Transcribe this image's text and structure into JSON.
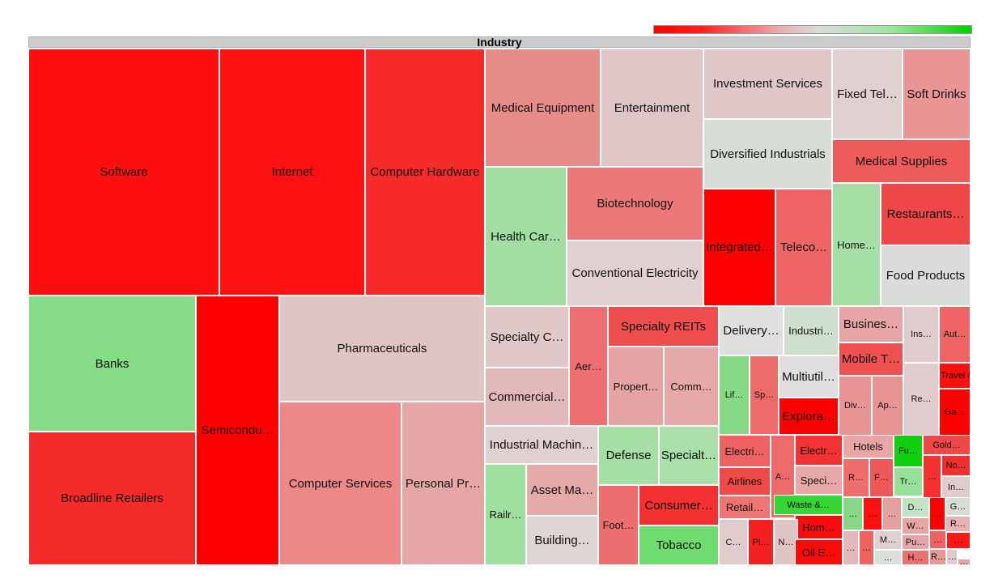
{
  "chart_data": {
    "type": "treemap",
    "title": "Industry",
    "color_scale": {
      "low": "#ff0000",
      "mid": "#d9dcd9",
      "high": "#00d000"
    },
    "cells": [
      {
        "label": "Software",
        "color": "#fd0f10"
      },
      {
        "label": "Internet",
        "color": "#fc1012"
      },
      {
        "label": "Computer Hardware",
        "color": "#f72a2a"
      },
      {
        "label": "Banks",
        "color": "#86dc86"
      },
      {
        "label": "Broadline Retailers",
        "color": "#f52a2a"
      },
      {
        "label": "Semicondu…",
        "color": "#ff0000"
      },
      {
        "label": "Pharmaceuticals",
        "color": "#e0c5c5"
      },
      {
        "label": "Computer Services",
        "color": "#ec8887"
      },
      {
        "label": "Personal Pr…",
        "color": "#e6a6a6"
      },
      {
        "label": "Medical Equipment",
        "color": "#e88c8a"
      },
      {
        "label": "Entertainment",
        "color": "#e0c6c6"
      },
      {
        "label": "Investment Services",
        "color": "#e0c8c8"
      },
      {
        "label": "Fixed Tel…",
        "color": "#e0d0d0"
      },
      {
        "label": "Soft Drinks",
        "color": "#e99595"
      },
      {
        "label": "Diversified Industrials",
        "color": "#d8ddd8"
      },
      {
        "label": "Medical Supplies",
        "color": "#ee5b5b"
      },
      {
        "label": "Health Car…",
        "color": "#a2dea2"
      },
      {
        "label": "Biotechnology",
        "color": "#eb7979"
      },
      {
        "label": "Conventional Electricity",
        "color": "#e0d0d0"
      },
      {
        "label": "Integrated…",
        "color": "#ff0000"
      },
      {
        "label": "Teleco…",
        "color": "#ef6464"
      },
      {
        "label": "Home…",
        "color": "#a5dfa5"
      },
      {
        "label": "Restaurants…",
        "color": "#f04848"
      },
      {
        "label": "Food Products",
        "color": "#d9dcd9"
      },
      {
        "label": "Specialty C…",
        "color": "#e0c8c8"
      },
      {
        "label": "Commercial…",
        "color": "#e2b9b9"
      },
      {
        "label": "Aer…",
        "color": "#ed6f6f"
      },
      {
        "label": "Specialty REITs",
        "color": "#f04e4e"
      },
      {
        "label": "Propert…",
        "color": "#e6a3a3"
      },
      {
        "label": "Comm…",
        "color": "#e6a8a8"
      },
      {
        "label": "Industrial Machin…",
        "color": "#e0d0d0"
      },
      {
        "label": "Railr…",
        "color": "#9ee09e"
      },
      {
        "label": "Asset Ma…",
        "color": "#e6a9a9"
      },
      {
        "label": "Building…",
        "color": "#e0d4d4"
      },
      {
        "label": "Defense",
        "color": "#a6dfa6"
      },
      {
        "label": "Specialt…",
        "color": "#a9dfa9"
      },
      {
        "label": "Foot…",
        "color": "#ed6e6e"
      },
      {
        "label": "Consumer…",
        "color": "#f33131"
      },
      {
        "label": "Tobacco",
        "color": "#6fdc6f"
      },
      {
        "label": "Delivery…",
        "color": "#e0dede"
      },
      {
        "label": "Industri…",
        "color": "#cfdfcf"
      },
      {
        "label": "Busines…",
        "color": "#e8a5a5"
      },
      {
        "label": "Ins…",
        "color": "#e0cccc"
      },
      {
        "label": "Aut…",
        "color": "#ef6565"
      },
      {
        "label": "Mobile T…",
        "color": "#f25050"
      },
      {
        "label": "Lif…",
        "color": "#86da86"
      },
      {
        "label": "Sp…",
        "color": "#ee6b6b"
      },
      {
        "label": "Multiutil…",
        "color": "#e0dede"
      },
      {
        "label": "Explora…",
        "color": "#ff0000"
      },
      {
        "label": "Div…",
        "color": "#e89494"
      },
      {
        "label": "Ap…",
        "color": "#e99494"
      },
      {
        "label": "Re…",
        "color": "#e0cccc"
      },
      {
        "label": "Travel &…",
        "color": "#fb0f0f"
      },
      {
        "label": "Ga…",
        "color": "#ff0000"
      },
      {
        "label": "Electri…",
        "color": "#ef6262"
      },
      {
        "label": "A…",
        "color": "#ef6a6a"
      },
      {
        "label": "Electr…",
        "color": "#f33333"
      },
      {
        "label": "Hotels",
        "color": "#e8a6a6"
      },
      {
        "label": "Fu…",
        "color": "#10d010"
      },
      {
        "label": "Gold…",
        "color": "#f04848"
      },
      {
        "label": "Airlines",
        "color": "#f04a4a"
      },
      {
        "label": "Speci…",
        "color": "#e8a8a8"
      },
      {
        "label": "R…",
        "color": "#ee6d6d"
      },
      {
        "label": "F…",
        "color": "#ef5858"
      },
      {
        "label": "Tr…",
        "color": "#98e098"
      },
      {
        "label": "…",
        "color": "#f53030"
      },
      {
        "label": "No…",
        "color": "#f03030"
      },
      {
        "label": "In…",
        "color": "#e0cccc"
      },
      {
        "label": "Retail…",
        "color": "#ef7474"
      },
      {
        "label": "Waste &…",
        "color": "#36d636"
      },
      {
        "label": "…",
        "color": "#86d886"
      },
      {
        "label": "…",
        "color": "#ff1010"
      },
      {
        "label": "…",
        "color": "#e6a0a0"
      },
      {
        "label": "D…",
        "color": "#c4e3c4"
      },
      {
        "label": "…",
        "color": "#ff0000"
      },
      {
        "label": "G…",
        "color": "#d7dcd7"
      },
      {
        "label": "Hom…",
        "color": "#f60c0c"
      },
      {
        "label": "W…",
        "color": "#e8a5a5"
      },
      {
        "label": "R…",
        "color": "#e6b2b2"
      },
      {
        "label": "C…",
        "color": "#e0cccc"
      },
      {
        "label": "Pi…",
        "color": "#f72020"
      },
      {
        "label": "N…",
        "color": "#e0c5c5"
      },
      {
        "label": "Oil E…",
        "color": "#fb0a0a"
      },
      {
        "label": "…",
        "color": "#e2b9b9"
      },
      {
        "label": "…",
        "color": "#ef6363"
      },
      {
        "label": "M…",
        "color": "#e0d0d0"
      },
      {
        "label": "Pu…",
        "color": "#e8a5a5"
      },
      {
        "label": "…",
        "color": "#ef6363"
      },
      {
        "label": "…",
        "color": "#ff1515"
      },
      {
        "label": "…",
        "color": "#d9e0d9"
      },
      {
        "label": "H…",
        "color": "#ec7272"
      },
      {
        "label": "R…",
        "color": "#e89898"
      },
      {
        "label": "…",
        "color": "#e0cccc"
      },
      {
        "label": "…",
        "color": "#e7a3a3"
      },
      {
        "label": "…",
        "color": "#40d040"
      }
    ]
  }
}
